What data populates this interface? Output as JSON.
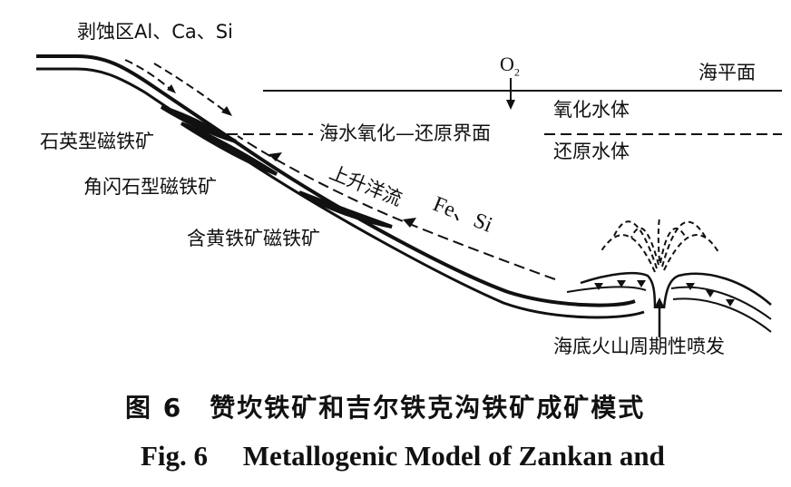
{
  "labels": {
    "erosion_zone": "剥蚀区Al、Ca、Si",
    "oxygen": "O",
    "oxygen_sub": "2",
    "sea_level": "海平面",
    "oxidized_water": "氧化水体",
    "redox_interface": "海水氧化—还原界面",
    "reduced_water": "还原水体",
    "quartz_magnetite": "石英型磁铁矿",
    "amphibole_magnetite": "角闪石型磁铁矿",
    "upwelling": "上升洋流",
    "fe_si": "Fe、Si",
    "pyrite_magnetite": "含黄铁矿磁铁矿",
    "volcanic_eruption": "海底火山周期性喷发"
  },
  "caption": {
    "chinese": "图 6　赞坎铁矿和吉尔铁克沟铁矿成矿模式",
    "english": "Fig. 6　 Metallogenic Model of Zankan and"
  },
  "colors": {
    "ink": "#111111",
    "background": "#ffffff"
  }
}
